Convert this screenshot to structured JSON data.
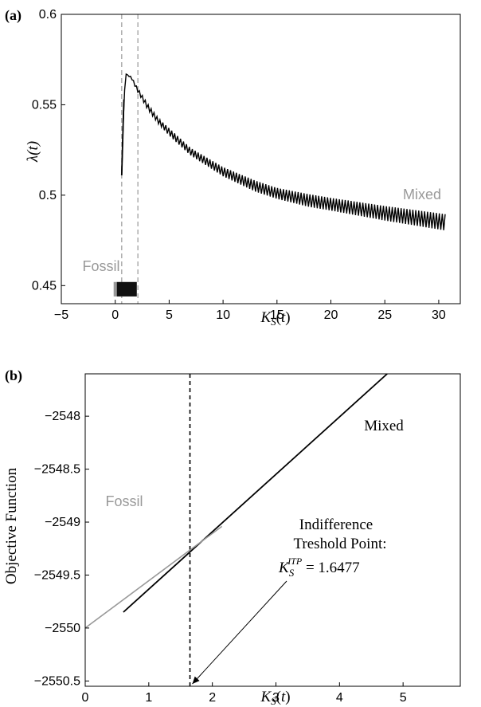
{
  "colors": {
    "fossil": "#999999",
    "mixed": "#000000",
    "guide": "#999999"
  },
  "chart_data": [
    {
      "panel": "(a)",
      "type": "line",
      "xlabel": "K_S(t)",
      "ylabel": "λ(t)",
      "xlim": [
        -5,
        32
      ],
      "ylim": [
        0.44,
        0.6
      ],
      "x_ticks": [
        -5,
        0,
        5,
        10,
        15,
        20,
        25,
        30
      ],
      "y_ticks": [
        0.45,
        0.5,
        0.55,
        0.6
      ],
      "y_tick_labels": [
        "0.45",
        "0.5",
        "0.55",
        "0.6"
      ],
      "vertical_guides": [
        0.6,
        2.1
      ],
      "series": [
        {
          "name": "Mixed",
          "label_text": "Mixed",
          "color": "#000000",
          "x": [
            0.6,
            0.8,
            1.0,
            1.5,
            2.0,
            3.0,
            4.0,
            5.0,
            7.0,
            10.0,
            13.0,
            15.0,
            18.0,
            20.0,
            25.0,
            30.6
          ],
          "y": [
            0.511,
            0.553,
            0.567,
            0.565,
            0.559,
            0.549,
            0.541,
            0.535,
            0.524,
            0.513,
            0.505,
            0.501,
            0.497,
            0.495,
            0.49,
            0.485
          ],
          "band_start": [
            0.0,
            0.0,
            0.0,
            0.001,
            0.002,
            0.003,
            0.003,
            0.004,
            0.004,
            0.005,
            0.006,
            0.006,
            0.007,
            0.007,
            0.008,
            0.009
          ]
        },
        {
          "name": "Fossil",
          "label_text": "Fossil",
          "color": "#999999",
          "x": [
            0.0,
            2.0
          ],
          "y": [
            0.448,
            0.448
          ],
          "y_range": [
            0.444,
            0.452
          ]
        }
      ]
    },
    {
      "panel": "(b)",
      "type": "line",
      "xlabel": "K_S(t)",
      "ylabel": "Objective Function",
      "xlim": [
        0,
        5.9
      ],
      "ylim": [
        -2550.55,
        -2547.6
      ],
      "x_ticks": [
        0,
        1,
        2,
        3,
        4,
        5
      ],
      "y_ticks": [
        -2550.5,
        -2550,
        -2549.5,
        -2549,
        -2548.5,
        -2548
      ],
      "y_tick_labels": [
        "−2550.5",
        "−2550",
        "−2549.5",
        "−2549",
        "−2548.5",
        "−2548"
      ],
      "vertical_guides": [
        1.6477
      ],
      "series": [
        {
          "name": "Mixed",
          "label_text": "Mixed",
          "color": "#000000",
          "x": [
            0.6,
            4.75
          ],
          "y": [
            -2549.85,
            -2547.6
          ]
        },
        {
          "name": "Fossil",
          "label_text": "Fossil",
          "color": "#999999",
          "x": [
            0.0,
            2.15
          ],
          "y": [
            -2550.0,
            -2549.04
          ]
        }
      ],
      "annotation": {
        "line1": "Indifference",
        "line2": "Treshold Point:",
        "symbol": "K",
        "subscript": "S",
        "superscript": "ITP",
        "value_text": " = 1.6477",
        "arrow_to": [
          1.6477,
          -2550.55
        ]
      }
    }
  ]
}
